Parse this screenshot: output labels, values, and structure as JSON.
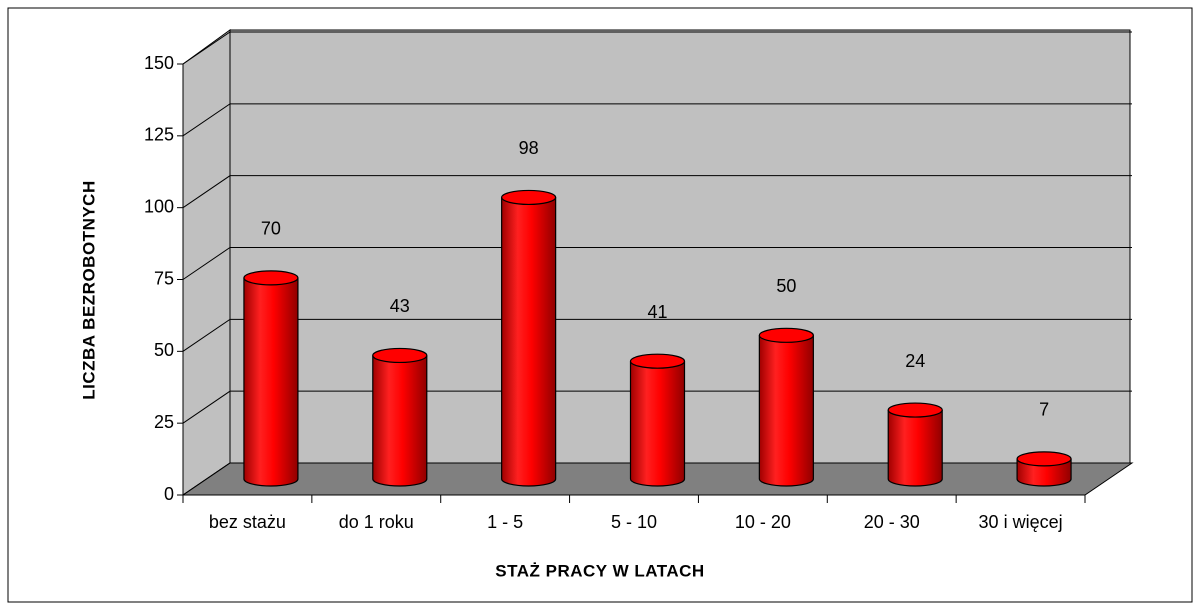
{
  "chart_data": {
    "type": "bar",
    "x_label": "STAŻ PRACY W LATACH",
    "y_label": "LICZBA BEZROBOTNYCH",
    "categories": [
      "bez stażu",
      "do 1 roku",
      "1 - 5",
      "5 - 10",
      "10 - 20",
      "20 - 30",
      "30 i więcej"
    ],
    "values": [
      70,
      43,
      98,
      41,
      50,
      24,
      7
    ],
    "color": "#ff0000",
    "ylim": [
      0,
      150
    ],
    "yticks": [
      0,
      25,
      50,
      75,
      100,
      125,
      150
    ],
    "grid": true
  }
}
